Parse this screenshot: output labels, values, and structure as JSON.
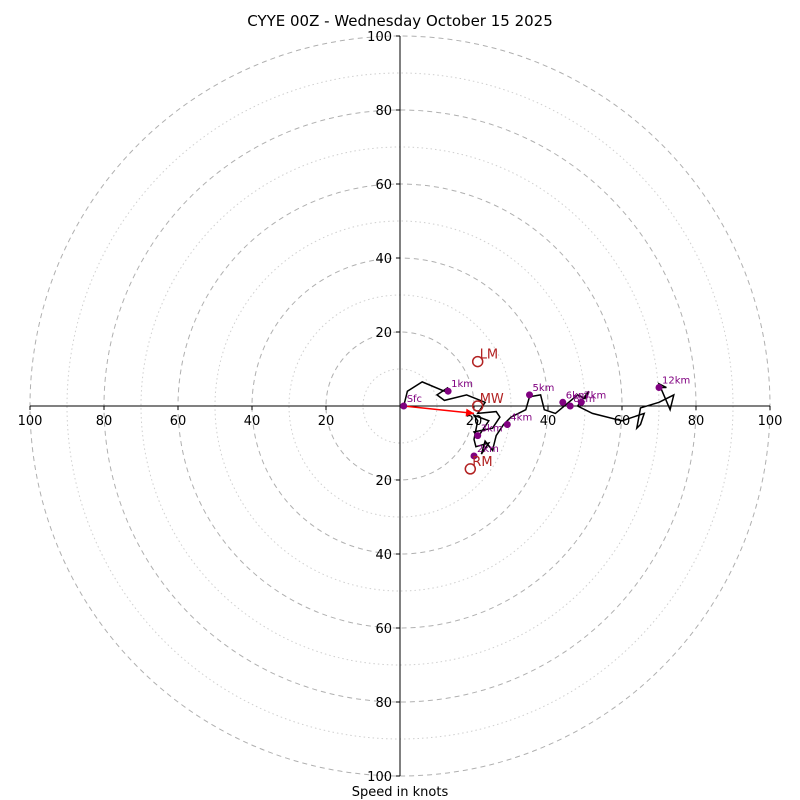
{
  "chart_data": {
    "type": "hodograph",
    "title": "CYYE 00Z - Wednesday October 15 2025",
    "xlabel": "Speed in knots",
    "rings_dashed": [
      20,
      40,
      60,
      80,
      100
    ],
    "rings_dotted": [
      10,
      30,
      50,
      70,
      90
    ],
    "axis_range": [
      -100,
      100
    ],
    "tick_labels": {
      "left": [
        "100",
        "80",
        "60",
        "40",
        "20"
      ],
      "right": [
        "20",
        "40",
        "60",
        "80",
        "100"
      ],
      "top": [
        "100",
        "80",
        "60",
        "40",
        "20"
      ],
      "bottom": [
        "20",
        "40",
        "60",
        "80",
        "100"
      ]
    },
    "tick_values": [
      100,
      80,
      60,
      40,
      20
    ],
    "grid": true,
    "colors": {
      "trace": "#000000",
      "heights": "#800080",
      "motion": "#b22222",
      "arrow": "#ff0000",
      "grid": "#b0b0b0"
    },
    "wind_trace": [
      [
        1,
        0
      ],
      [
        2,
        4
      ],
      [
        6,
        6.5
      ],
      [
        12,
        4
      ],
      [
        13,
        5
      ],
      [
        10,
        3
      ],
      [
        12,
        1.5
      ],
      [
        18,
        3
      ],
      [
        23,
        1
      ],
      [
        21,
        -2
      ],
      [
        26,
        -1.5
      ],
      [
        27,
        -3
      ],
      [
        25,
        -6
      ],
      [
        20,
        -7
      ],
      [
        21,
        -8.5
      ],
      [
        24,
        -4
      ],
      [
        20,
        -2.5
      ],
      [
        21,
        -4
      ],
      [
        20,
        -9
      ],
      [
        20.5,
        -11
      ],
      [
        24,
        -10
      ],
      [
        22,
        -13
      ],
      [
        23,
        -9.5
      ],
      [
        25,
        -12
      ],
      [
        26,
        -8
      ],
      [
        28,
        -5
      ],
      [
        30,
        -3
      ],
      [
        34,
        -1
      ],
      [
        35,
        2.5
      ],
      [
        38,
        3
      ],
      [
        39,
        -1
      ],
      [
        42,
        -2
      ],
      [
        48,
        3
      ],
      [
        50,
        2
      ],
      [
        51,
        4
      ],
      [
        48,
        0
      ],
      [
        52,
        -2
      ],
      [
        60,
        -4
      ],
      [
        66,
        -2
      ],
      [
        65,
        -5
      ],
      [
        64,
        -6
      ],
      [
        65,
        -0.5
      ],
      [
        70,
        1
      ],
      [
        74,
        3
      ],
      [
        73,
        -1
      ],
      [
        70,
        6
      ],
      [
        72,
        5
      ],
      [
        70,
        5
      ]
    ],
    "height_markers": [
      {
        "label": "Sfc",
        "u": 1,
        "v": 0
      },
      {
        "label": "1km",
        "u": 13,
        "v": 4
      },
      {
        "label": "2km",
        "u": 20,
        "v": -13.5
      },
      {
        "label": "3km",
        "u": 21,
        "v": -8
      },
      {
        "label": "4km",
        "u": 29,
        "v": -5
      },
      {
        "label": "5km",
        "u": 35,
        "v": 3
      },
      {
        "label": "6km",
        "u": 44,
        "v": 1
      },
      {
        "label": "8km",
        "u": 46,
        "v": 0
      },
      {
        "label": "7km",
        "u": 49,
        "v": 1
      },
      {
        "label": "12km",
        "u": 70,
        "v": 5
      }
    ],
    "storm_motion": [
      {
        "label": "LM",
        "u": 21,
        "v": 12
      },
      {
        "label": "MW",
        "u": 21,
        "v": 0
      },
      {
        "label": "RM",
        "u": 19,
        "v": -17
      }
    ],
    "shear_vector": {
      "from": [
        1,
        0
      ],
      "to": [
        20,
        -2
      ]
    }
  }
}
